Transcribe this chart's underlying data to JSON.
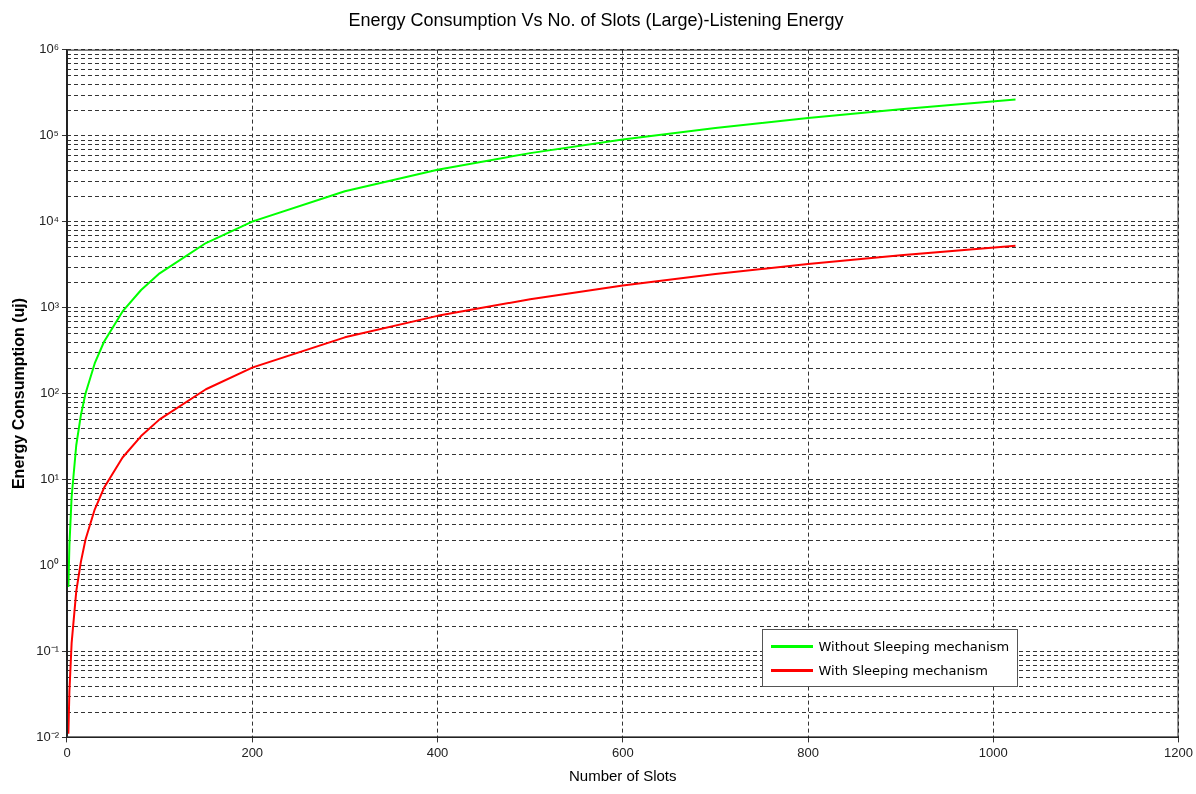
{
  "chart_data": {
    "type": "line",
    "title": "Energy Consumption Vs No. of Slots (Large)-Listening Energy",
    "xlabel": "Number of Slots",
    "ylabel": "Energy Consumption (uj)",
    "x": [
      1.5,
      2.6,
      5,
      10,
      15,
      20,
      30,
      40,
      60,
      80,
      100,
      150,
      200,
      300,
      400,
      500,
      600,
      700,
      800,
      900,
      1024
    ],
    "series": [
      {
        "name": "Without Sleeping mechanism",
        "color": "#00ff00",
        "values": [
          0.56,
          1.7,
          6.25,
          25,
          56,
          100,
          225,
          400,
          900,
          1600,
          2500,
          5625,
          10000,
          22500,
          40000,
          62500,
          90000,
          122500,
          160000,
          202500,
          262000
        ]
      },
      {
        "name": "With Sleeping mechanism",
        "color": "#ff0000",
        "values": [
          0.011,
          0.034,
          0.125,
          0.5,
          1.1,
          2,
          4.5,
          8,
          18,
          32,
          50,
          112,
          200,
          450,
          800,
          1250,
          1800,
          2450,
          3200,
          4050,
          5240
        ]
      }
    ],
    "xlim": [
      0,
      1200
    ],
    "xticks": [
      0,
      200,
      400,
      600,
      800,
      1000,
      1200
    ],
    "ylim": [
      0.01,
      1000000
    ],
    "yticks": [
      {
        "value": 0.01,
        "label": "10⁻²"
      },
      {
        "value": 0.1,
        "label": "10⁻¹"
      },
      {
        "value": 1,
        "label": "10⁰"
      },
      {
        "value": 10,
        "label": "10¹"
      },
      {
        "value": 100,
        "label": "10²"
      },
      {
        "value": 1000,
        "label": "10³"
      },
      {
        "value": 10000,
        "label": "10⁴"
      },
      {
        "value": 100000,
        "label": "10⁵"
      },
      {
        "value": 1000000,
        "label": "10⁶"
      }
    ],
    "log": true,
    "grid": true,
    "legend": "bottom right",
    "marker": "none",
    "line_style": "solid"
  }
}
